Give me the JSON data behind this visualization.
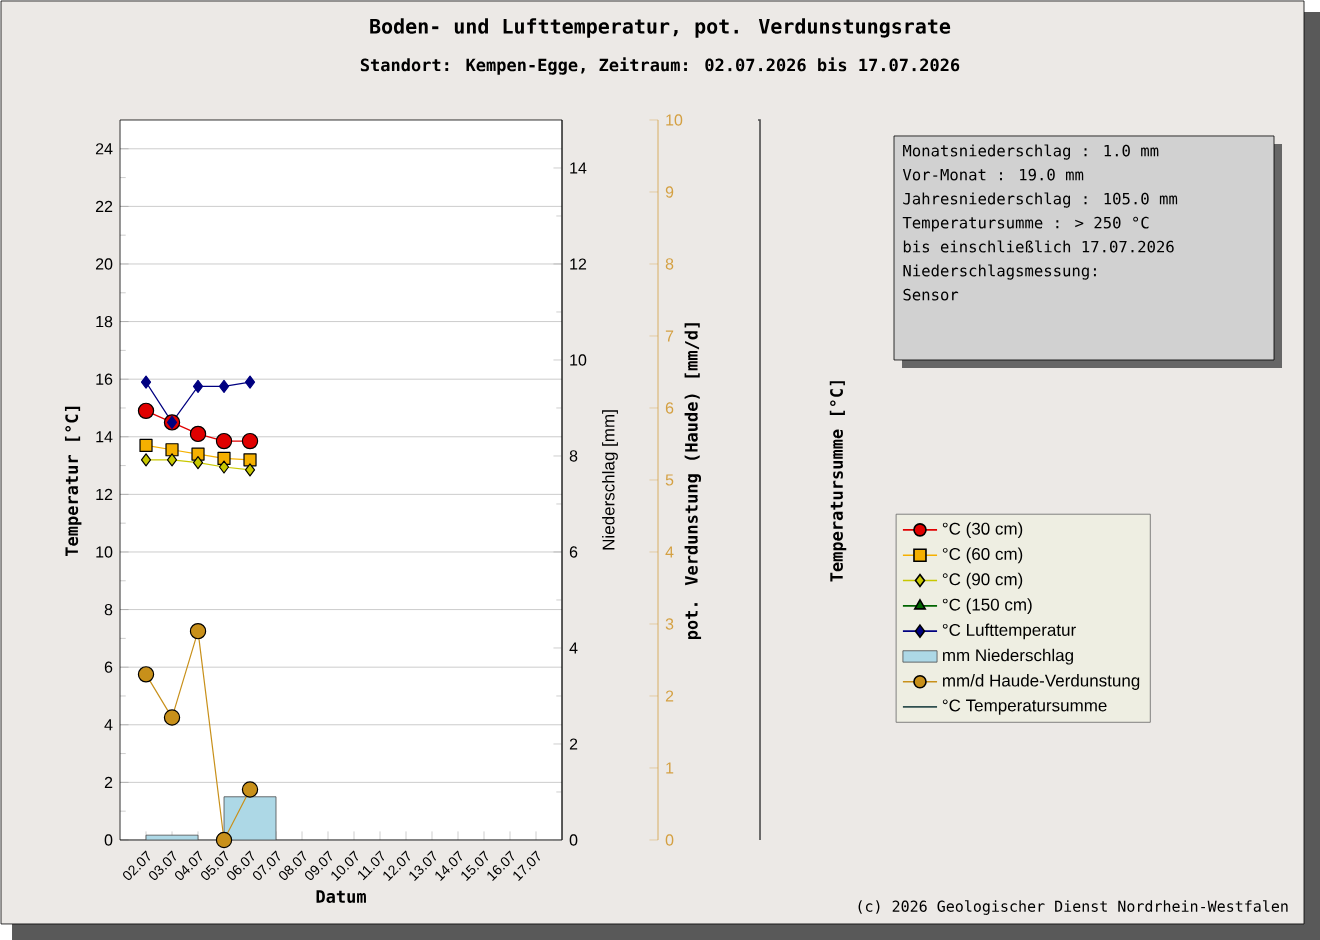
{
  "chart_data": {
    "type": "line",
    "title": "Boden- und Lufttemperatur, pot. Verdunstungsrate",
    "subtitle": "Standort: Kempen-Egge, Zeitraum: 02.07.2026 bis 17.07.2026",
    "xlabel": "Datum",
    "ylabel": "Temperatur [°C]",
    "y2label": "Niederschlag [mm]",
    "y3label": "pot. Verdunstung (Haude) [mm/d]",
    "categories": [
      "02.07",
      "03.07",
      "04.07",
      "05.07",
      "06.07",
      "07.07",
      "08.07",
      "09.07",
      "10.07",
      "11.07",
      "12.07",
      "13.07",
      "14.07",
      "15.07",
      "16.07",
      "17.07"
    ],
    "series": [
      {
        "name": "°C (30 cm)",
        "color": "#e00000",
        "marker": "circle",
        "values": [
          14.9,
          14.5,
          14.1,
          13.85,
          13.85,
          null,
          null,
          null,
          null,
          null,
          null,
          null,
          null,
          null,
          null,
          null
        ]
      },
      {
        "name": "°C (60 cm)",
        "color": "#f5b000",
        "marker": "square",
        "values": [
          13.7,
          13.55,
          13.4,
          13.25,
          13.2,
          null,
          null,
          null,
          null,
          null,
          null,
          null,
          null,
          null,
          null,
          null
        ]
      },
      {
        "name": "°C (90 cm)",
        "color": "#c8c800",
        "marker": "diamond",
        "values": [
          13.2,
          13.2,
          13.1,
          12.95,
          12.85,
          null,
          null,
          null,
          null,
          null,
          null,
          null,
          null,
          null,
          null,
          null
        ]
      },
      {
        "name": "°C (150 cm)",
        "color": "#006400",
        "marker": "triangle",
        "values": [
          null,
          null,
          null,
          null,
          null,
          null,
          null,
          null,
          null,
          null,
          null,
          null,
          null,
          null,
          null,
          null
        ]
      },
      {
        "name": "°C Lufttemperatur",
        "color": "#000080",
        "marker": "diamond",
        "values": [
          15.9,
          14.5,
          15.75,
          15.75,
          15.9,
          null,
          null,
          null,
          null,
          null,
          null,
          null,
          null,
          null,
          null,
          null
        ]
      },
      {
        "name": "mm Niederschlag",
        "color": "#add8e6",
        "type": "bar",
        "axis": "y2",
        "values": [
          null,
          0.1,
          null,
          null,
          0.9,
          null,
          null,
          null,
          null,
          null,
          null,
          null,
          null,
          null,
          null,
          null
        ]
      },
      {
        "name": "mm/d Haude-Verdunstung",
        "color": "#c8901a",
        "marker": "circle",
        "axis": "y3",
        "values": [
          2.3,
          1.7,
          2.9,
          0.0,
          0.7,
          null,
          null,
          null,
          null,
          null,
          null,
          null,
          null,
          null,
          null,
          null
        ]
      },
      {
        "name": "°C Temperatursumme",
        "color": "#2f4f4f",
        "marker": "none",
        "values": [
          null,
          null,
          null,
          null,
          null,
          null,
          null,
          null,
          null,
          null,
          null,
          null,
          null,
          null,
          null,
          null
        ]
      }
    ],
    "ylim": [
      0,
      25
    ],
    "yticks": [
      0,
      2,
      4,
      6,
      8,
      10,
      12,
      14,
      16,
      18,
      20,
      22,
      24
    ],
    "y2lim": [
      0,
      15
    ],
    "y2ticks": [
      0,
      2,
      4,
      6,
      8,
      10,
      12,
      14
    ],
    "y3lim": [
      0,
      10
    ],
    "y3ticks": [
      0,
      1,
      2,
      3,
      4,
      5,
      6,
      7,
      8,
      9,
      10
    ],
    "grid": "y",
    "legend": "right",
    "annotations": [
      "Temperatursumme [°C]",
      "Monatsniederschlag : 1.0 mm",
      "Vor-Monat : 19.0 mm",
      "Jahresniederschlag : 105.0 mm",
      "Temperatursumme : > 250 °C",
      "bis einschließlich 17.07.2026",
      "Niederschlagsmessung:",
      "Sensor",
      "(c) 2026 Geologischer Dienst Nordrhein-Westfalen"
    ]
  }
}
